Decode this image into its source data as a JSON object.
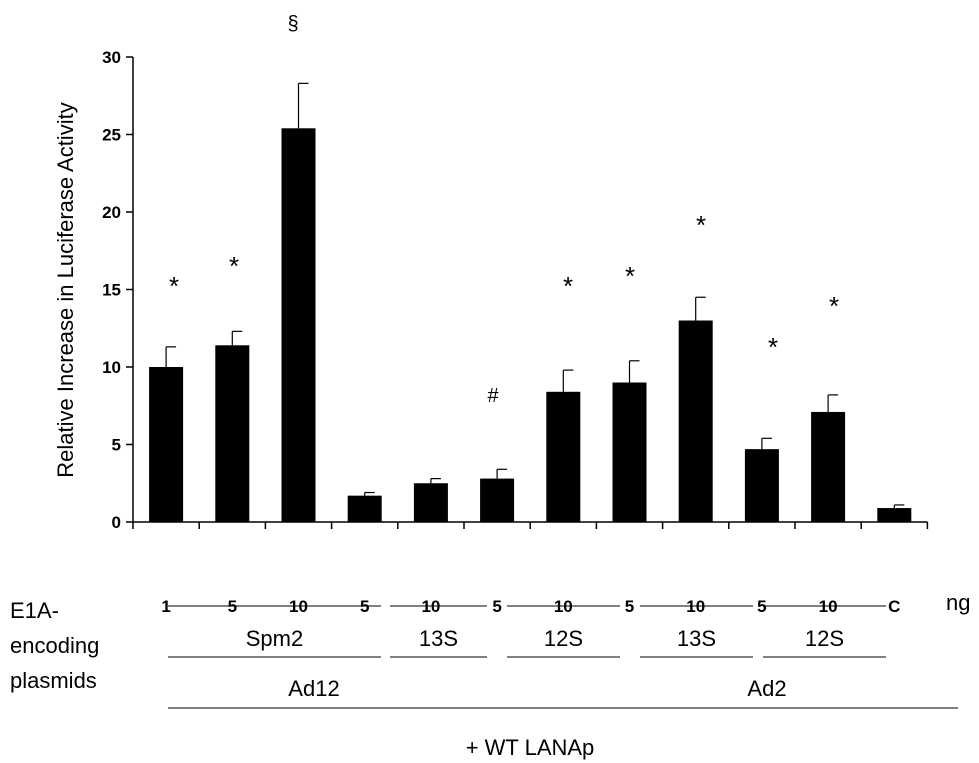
{
  "chart_data": {
    "type": "bar",
    "ylabel": "Relative Increase in Luciferase Activity",
    "ylim": [
      0,
      30
    ],
    "yticks": [
      0,
      5,
      10,
      15,
      20,
      25,
      30
    ],
    "grid": false,
    "categories": [
      "1",
      "5",
      "10",
      "5",
      "10",
      "5",
      "10",
      "5",
      "10",
      "5",
      "10",
      "C"
    ],
    "x_unit": "ng",
    "values": [
      10.0,
      11.4,
      25.4,
      1.7,
      2.5,
      2.8,
      8.4,
      9.0,
      13.0,
      4.7,
      7.1,
      0.9
    ],
    "error": [
      1.3,
      0.9,
      2.9,
      0.2,
      0.3,
      0.6,
      1.4,
      1.4,
      1.5,
      0.7,
      1.1,
      0.2
    ],
    "annotations": [
      "*",
      "*",
      "§",
      "",
      "",
      "#",
      "*",
      "*",
      "*",
      "*",
      "*",
      ""
    ],
    "bar_color": "#000000",
    "groups": {
      "row_label": "E1A-\nencoding\nplasmids",
      "level1": [
        {
          "label": "Spm2",
          "start": 0,
          "end": 2
        },
        {
          "label": "13S",
          "start": 3,
          "end": 4
        },
        {
          "label": "12S",
          "start": 5,
          "end": 6
        },
        {
          "label": "13S",
          "start": 7,
          "end": 8
        },
        {
          "label": "12S",
          "start": 9,
          "end": 10
        }
      ],
      "level2": [
        {
          "label": "Ad12",
          "start": 0,
          "end": 6
        },
        {
          "label": "Ad2",
          "start": 7,
          "end": 10
        }
      ],
      "footer": "+ WT LANAp"
    }
  }
}
